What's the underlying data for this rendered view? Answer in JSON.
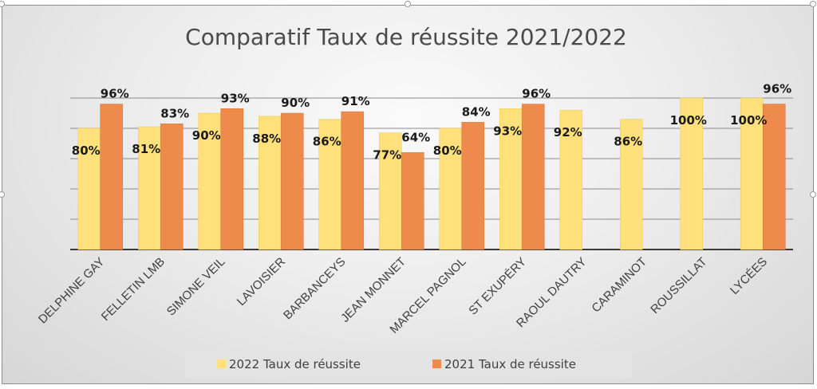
{
  "chart_data": {
    "type": "bar",
    "title": "Comparatif Taux de réussite 2021/2022",
    "categories": [
      "DELPHINE GAY",
      "FELLETIN LMB",
      "SIMONE VEIL",
      "LAVOISIER",
      "BARBANCEYS",
      "JEAN MONNET",
      "MARCEL PAGNOL",
      "ST EXUPÉRY",
      "RAOUL DAUTRY",
      "CARAMINOT",
      "ROUSSILLAT",
      "LYCÉES"
    ],
    "series": [
      {
        "name": "2022 Taux de réussite",
        "color": "#FFE07A",
        "values": [
          80,
          81,
          90,
          88,
          86,
          77,
          80,
          93,
          92,
          86,
          100,
          100
        ],
        "labels": [
          "80%",
          "81%",
          "90%",
          "88%",
          "86%",
          "77%",
          "80%",
          "93%",
          "92%",
          "86%",
          "100%",
          "100%"
        ]
      },
      {
        "name": "2021 Taux de réussite",
        "color": "#EE8A4C",
        "values": [
          96,
          83,
          93,
          90,
          91,
          64,
          84,
          96,
          null,
          null,
          null,
          96
        ],
        "labels": [
          "96%",
          "83%",
          "93%",
          "90%",
          "91%",
          "64%",
          "84%",
          "96%",
          null,
          null,
          null,
          "96%"
        ]
      }
    ],
    "ylim": [
      0,
      100
    ],
    "grid": true,
    "legend_position": "bottom"
  }
}
